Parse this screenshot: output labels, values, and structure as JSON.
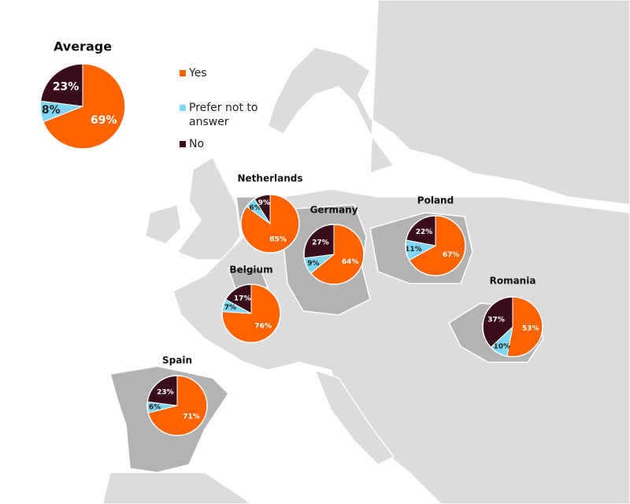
{
  "legend": {
    "items": [
      "Yes",
      "Prefer not to answer",
      "No"
    ],
    "colors": [
      "#ff6200",
      "#7fd6f3",
      "#3a0d1a"
    ]
  },
  "chart_data": [
    {
      "type": "pie",
      "title": "Average",
      "values": [
        69,
        8,
        23
      ],
      "value_labels": [
        "69%",
        "8%",
        "23%"
      ]
    },
    {
      "type": "pie",
      "title": "Netherlands",
      "values": [
        85,
        6,
        9
      ],
      "value_labels": [
        "85%",
        "6%",
        "9%"
      ]
    },
    {
      "type": "pie",
      "title": "Germany",
      "values": [
        64,
        9,
        27
      ],
      "value_labels": [
        "64%",
        "9%",
        "27%"
      ]
    },
    {
      "type": "pie",
      "title": "Poland",
      "values": [
        67,
        11,
        22
      ],
      "value_labels": [
        "67%",
        "11%",
        "22%"
      ]
    },
    {
      "type": "pie",
      "title": "Belgium",
      "values": [
        76,
        7,
        17
      ],
      "value_labels": [
        "76%",
        "7%",
        "17%"
      ]
    },
    {
      "type": "pie",
      "title": "Romania",
      "values": [
        53,
        10,
        37
      ],
      "value_labels": [
        "53%",
        "10%",
        "37%"
      ]
    },
    {
      "type": "pie",
      "title": "Spain",
      "values": [
        71,
        6,
        23
      ],
      "value_labels": [
        "71%",
        "6%",
        "23%"
      ]
    }
  ]
}
